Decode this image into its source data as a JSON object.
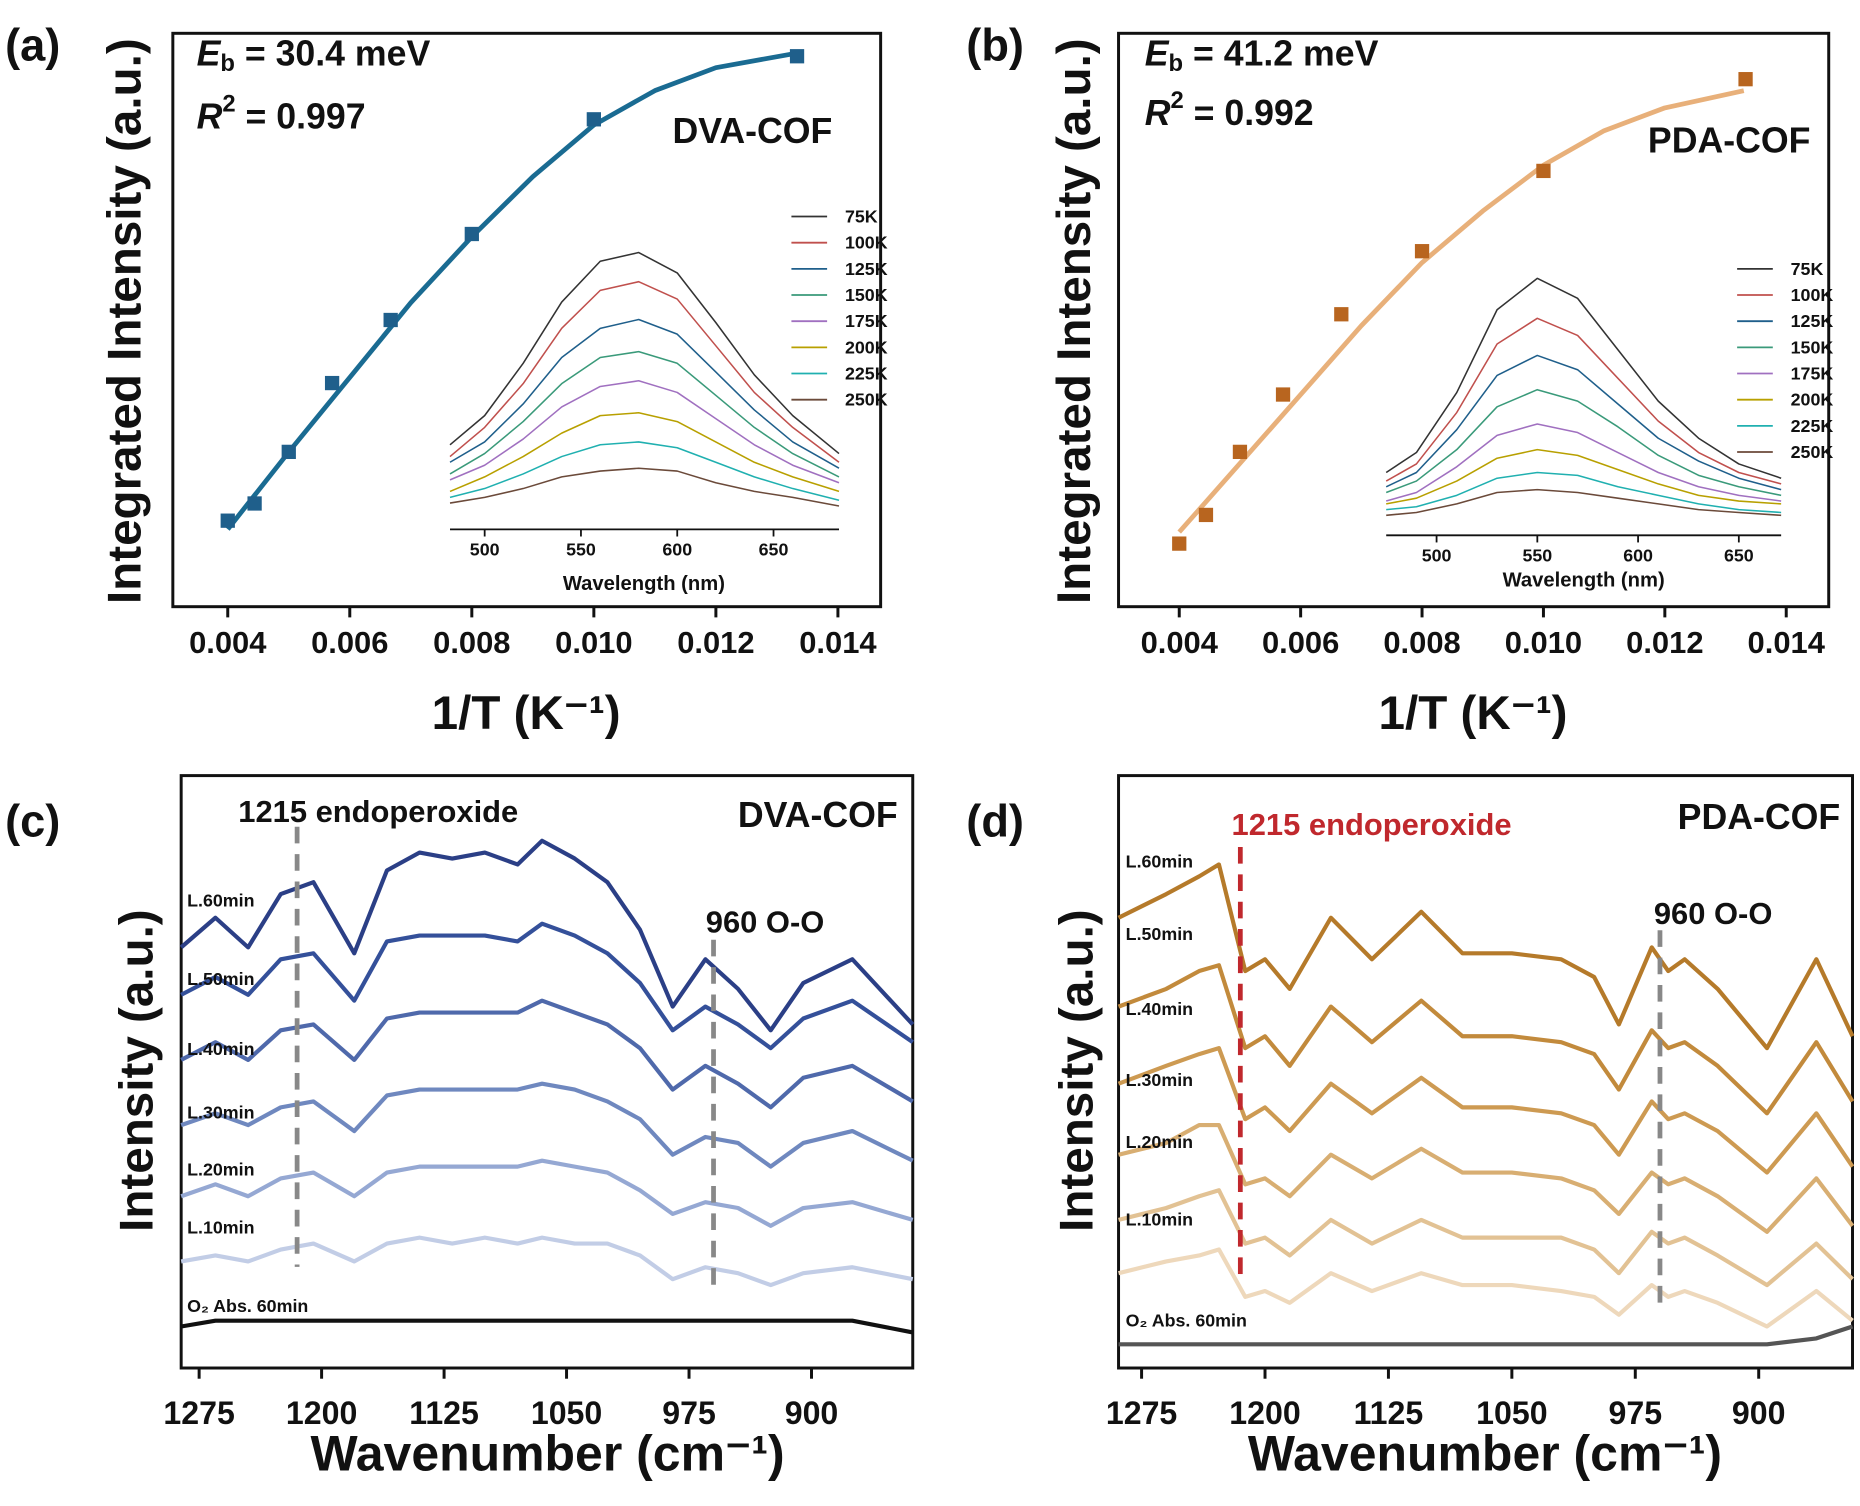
{
  "chart_data": [
    {
      "type": "scatter",
      "panel_label": "(a)",
      "ylabel": "Integrated Intensity (a.u.)",
      "xlabel": "1/T (K⁻¹)",
      "sample_label": "DVA-COF",
      "annotations": [
        {
          "symbol": "E",
          "subscript": "b",
          "text": " = 30.4 meV"
        },
        {
          "symbol": "R",
          "superscript": "2",
          "text": " = 0.997"
        }
      ],
      "x": [
        0.004,
        0.00444,
        0.005,
        0.00571,
        0.00667,
        0.008,
        0.01,
        0.01333
      ],
      "values": [
        0.15,
        0.18,
        0.27,
        0.39,
        0.5,
        0.65,
        0.85,
        0.96
      ],
      "fit_x": [
        0.004,
        0.005,
        0.006,
        0.007,
        0.008,
        0.009,
        0.01,
        0.011,
        0.012,
        0.0133
      ],
      "fit_values": [
        0.135,
        0.27,
        0.4,
        0.53,
        0.645,
        0.75,
        0.84,
        0.9,
        0.94,
        0.965
      ],
      "marker_color": "#1f5f8b",
      "color": "#1a6b92",
      "xlim": [
        0.0031,
        0.0147
      ],
      "ylim": [
        0,
        1
      ],
      "xticks": [
        0.004,
        0.006,
        0.008,
        {
          "value": 0.01,
          "label": "0.010"
        },
        0.012,
        0.014
      ]
    },
    {
      "type": "line",
      "xlabel": "Wavelength (nm)",
      "x": [
        482,
        500,
        520,
        540,
        560,
        580,
        600,
        620,
        640,
        660,
        684
      ],
      "series": [
        {
          "name": "75K",
          "color": "#333333",
          "values": [
            0.29,
            0.39,
            0.57,
            0.78,
            0.92,
            0.95,
            0.88,
            0.71,
            0.53,
            0.39,
            0.26
          ]
        },
        {
          "name": "100K",
          "color": "#c0504d",
          "values": [
            0.25,
            0.35,
            0.5,
            0.69,
            0.82,
            0.85,
            0.79,
            0.63,
            0.47,
            0.35,
            0.23
          ]
        },
        {
          "name": "125K",
          "color": "#1f5f8b",
          "values": [
            0.23,
            0.3,
            0.43,
            0.59,
            0.69,
            0.72,
            0.67,
            0.54,
            0.41,
            0.3,
            0.21
          ]
        },
        {
          "name": "150K",
          "color": "#3a9a7a",
          "values": [
            0.19,
            0.26,
            0.37,
            0.5,
            0.59,
            0.61,
            0.57,
            0.46,
            0.35,
            0.26,
            0.18
          ]
        },
        {
          "name": "175K",
          "color": "#a070c0",
          "values": [
            0.17,
            0.22,
            0.31,
            0.42,
            0.49,
            0.51,
            0.47,
            0.38,
            0.29,
            0.22,
            0.16
          ]
        },
        {
          "name": "200K",
          "color": "#b8a000",
          "values": [
            0.13,
            0.18,
            0.25,
            0.33,
            0.39,
            0.4,
            0.37,
            0.3,
            0.23,
            0.18,
            0.13
          ]
        },
        {
          "name": "225K",
          "color": "#20b0b0",
          "values": [
            0.11,
            0.14,
            0.19,
            0.25,
            0.29,
            0.3,
            0.28,
            0.23,
            0.18,
            0.14,
            0.1
          ]
        },
        {
          "name": "250K",
          "color": "#6b4a3a",
          "values": [
            0.09,
            0.11,
            0.14,
            0.18,
            0.2,
            0.21,
            0.2,
            0.16,
            0.13,
            0.11,
            0.08
          ]
        }
      ],
      "xlim": [
        482,
        684
      ],
      "ylim": [
        0,
        1
      ],
      "xticks": [
        500,
        550,
        600,
        650
      ]
    },
    {
      "type": "scatter",
      "panel_label": "(b)",
      "ylabel": "Integrated Intensity (a.u.)",
      "xlabel": "1/T (K⁻¹)",
      "sample_label": "PDA-COF",
      "annotations": [
        {
          "symbol": "E",
          "subscript": "b",
          "text": " = 41.2 meV"
        },
        {
          "symbol": "R",
          "superscript": "2",
          "text": " = 0.992"
        }
      ],
      "x": [
        0.004,
        0.00444,
        0.005,
        0.00571,
        0.00667,
        0.008,
        0.01,
        0.01333
      ],
      "values": [
        0.11,
        0.16,
        0.27,
        0.37,
        0.51,
        0.62,
        0.76,
        0.92
      ],
      "fit_x": [
        0.004,
        0.005,
        0.006,
        0.007,
        0.008,
        0.009,
        0.01,
        0.011,
        0.012,
        0.0133
      ],
      "fit_values": [
        0.13,
        0.25,
        0.37,
        0.49,
        0.6,
        0.69,
        0.77,
        0.83,
        0.87,
        0.9
      ],
      "marker_color": "#b8651f",
      "color": "#e8b07a",
      "xlim": [
        0.003,
        0.0147
      ],
      "ylim": [
        0,
        1
      ],
      "xticks": [
        0.004,
        0.006,
        0.008,
        {
          "value": 0.01,
          "label": "0.010"
        },
        0.012,
        0.014
      ]
    },
    {
      "type": "line",
      "xlabel": "Wavelength (nm)",
      "x": [
        475,
        490,
        510,
        530,
        550,
        570,
        590,
        610,
        630,
        650,
        671
      ],
      "series": [
        {
          "name": "75K",
          "color": "#333333",
          "values": [
            0.22,
            0.29,
            0.5,
            0.79,
            0.9,
            0.83,
            0.65,
            0.47,
            0.34,
            0.25,
            0.2
          ]
        },
        {
          "name": "100K",
          "color": "#c0504d",
          "values": [
            0.19,
            0.25,
            0.43,
            0.67,
            0.76,
            0.7,
            0.55,
            0.4,
            0.29,
            0.22,
            0.18
          ]
        },
        {
          "name": "125K",
          "color": "#1f5f8b",
          "values": [
            0.17,
            0.22,
            0.37,
            0.56,
            0.63,
            0.58,
            0.46,
            0.34,
            0.26,
            0.2,
            0.16
          ]
        },
        {
          "name": "150K",
          "color": "#3a9a7a",
          "values": [
            0.15,
            0.19,
            0.3,
            0.45,
            0.51,
            0.47,
            0.38,
            0.28,
            0.21,
            0.17,
            0.14
          ]
        },
        {
          "name": "175K",
          "color": "#a070c0",
          "values": [
            0.12,
            0.15,
            0.24,
            0.35,
            0.39,
            0.36,
            0.29,
            0.22,
            0.17,
            0.14,
            0.12
          ]
        },
        {
          "name": "200K",
          "color": "#b8a000",
          "values": [
            0.11,
            0.13,
            0.19,
            0.27,
            0.3,
            0.28,
            0.23,
            0.18,
            0.14,
            0.12,
            0.11
          ]
        },
        {
          "name": "225K",
          "color": "#20b0b0",
          "values": [
            0.09,
            0.1,
            0.14,
            0.2,
            0.22,
            0.21,
            0.17,
            0.14,
            0.11,
            0.09,
            0.08
          ]
        },
        {
          "name": "250K",
          "color": "#6b4a3a",
          "values": [
            0.07,
            0.08,
            0.11,
            0.15,
            0.16,
            0.15,
            0.13,
            0.11,
            0.09,
            0.08,
            0.07
          ]
        }
      ],
      "xlim": [
        475,
        671
      ],
      "ylim": [
        0,
        1
      ],
      "xticks": [
        500,
        550,
        600,
        650
      ]
    },
    {
      "type": "line",
      "panel_label": "(c)",
      "ylabel": "Intensity (a.u.)",
      "xlabel": "Wavenumber (cm⁻¹)",
      "sample_label": "DVA-COF",
      "annotations": [
        {
          "text": "1215 endoperoxide",
          "x": 1215,
          "color": "#888888"
        },
        {
          "text": "960 O-O",
          "x": 960,
          "color": "#888888"
        }
      ],
      "x": [
        1286,
        1265,
        1245,
        1225,
        1205,
        1180,
        1160,
        1140,
        1120,
        1100,
        1080,
        1065,
        1045,
        1025,
        1005,
        985,
        965,
        945,
        925,
        905,
        875,
        838
      ],
      "series": [
        {
          "name": "L.60min",
          "color": "#2b3f86",
          "values": [
            0.71,
            0.76,
            0.71,
            0.8,
            0.82,
            0.7,
            0.84,
            0.87,
            0.86,
            0.87,
            0.85,
            0.89,
            0.86,
            0.82,
            0.74,
            0.61,
            0.69,
            0.64,
            0.57,
            0.65,
            0.69,
            0.58
          ]
        },
        {
          "name": "L.50min",
          "color": "#34509a",
          "values": [
            0.63,
            0.66,
            0.63,
            0.69,
            0.7,
            0.62,
            0.72,
            0.73,
            0.73,
            0.73,
            0.72,
            0.75,
            0.73,
            0.7,
            0.65,
            0.57,
            0.61,
            0.58,
            0.54,
            0.59,
            0.62,
            0.55
          ]
        },
        {
          "name": "L.40min",
          "color": "#4f69ab",
          "values": [
            0.52,
            0.55,
            0.52,
            0.57,
            0.58,
            0.52,
            0.59,
            0.6,
            0.6,
            0.6,
            0.6,
            0.62,
            0.6,
            0.58,
            0.54,
            0.47,
            0.51,
            0.48,
            0.44,
            0.49,
            0.51,
            0.45
          ]
        },
        {
          "name": "L.30min",
          "color": "#6f88bf",
          "values": [
            0.41,
            0.43,
            0.41,
            0.44,
            0.45,
            0.4,
            0.46,
            0.47,
            0.47,
            0.47,
            0.47,
            0.48,
            0.47,
            0.45,
            0.42,
            0.36,
            0.39,
            0.38,
            0.34,
            0.38,
            0.4,
            0.35
          ]
        },
        {
          "name": "L.20min",
          "color": "#95a8d3",
          "values": [
            0.29,
            0.31,
            0.29,
            0.32,
            0.33,
            0.29,
            0.33,
            0.34,
            0.34,
            0.34,
            0.34,
            0.35,
            0.34,
            0.33,
            0.3,
            0.26,
            0.28,
            0.27,
            0.24,
            0.27,
            0.28,
            0.25
          ]
        },
        {
          "name": "L.10min",
          "color": "#c2cde6",
          "values": [
            0.18,
            0.19,
            0.18,
            0.2,
            0.21,
            0.18,
            0.21,
            0.22,
            0.21,
            0.22,
            0.21,
            0.22,
            0.21,
            0.21,
            0.19,
            0.15,
            0.17,
            0.16,
            0.14,
            0.16,
            0.17,
            0.15
          ]
        },
        {
          "name": "O₂ Abs. 60min",
          "color": "#111111",
          "values": [
            0.07,
            0.08,
            0.08,
            0.08,
            0.08,
            0.08,
            0.08,
            0.08,
            0.08,
            0.08,
            0.08,
            0.08,
            0.08,
            0.08,
            0.08,
            0.08,
            0.08,
            0.08,
            0.08,
            0.08,
            0.08,
            0.06
          ]
        }
      ],
      "xlim": [
        1286,
        838
      ],
      "ylim": [
        0,
        1
      ],
      "xticks": [
        1275,
        1200,
        1125,
        1050,
        975,
        900
      ]
    },
    {
      "type": "line",
      "panel_label": "(d)",
      "ylabel": "Intensity (a.u.)",
      "xlabel": "Wavenumber (cm⁻¹)",
      "sample_label": "PDA-COF",
      "annotations": [
        {
          "text": "1215 endoperoxide",
          "x": 1215,
          "color": "#c0282d"
        },
        {
          "text": "960 O-O",
          "x": 960,
          "color": "#888888"
        }
      ],
      "x": [
        1289,
        1260,
        1240,
        1228,
        1212,
        1200,
        1185,
        1160,
        1135,
        1105,
        1080,
        1050,
        1020,
        1000,
        985,
        965,
        955,
        945,
        925,
        895,
        865,
        843
      ],
      "series": [
        {
          "name": "L.60min",
          "color": "#b57a2a",
          "values": [
            0.76,
            0.8,
            0.83,
            0.85,
            0.67,
            0.69,
            0.64,
            0.76,
            0.69,
            0.77,
            0.7,
            0.7,
            0.69,
            0.66,
            0.58,
            0.71,
            0.67,
            0.69,
            0.64,
            0.54,
            0.69,
            0.56
          ]
        },
        {
          "name": "L.50min",
          "color": "#c28a3c",
          "values": [
            0.61,
            0.64,
            0.67,
            0.68,
            0.54,
            0.56,
            0.51,
            0.61,
            0.55,
            0.62,
            0.56,
            0.56,
            0.55,
            0.53,
            0.47,
            0.57,
            0.54,
            0.55,
            0.51,
            0.43,
            0.55,
            0.45
          ]
        },
        {
          "name": "L.40min",
          "color": "#cd9a52",
          "values": [
            0.48,
            0.51,
            0.53,
            0.54,
            0.42,
            0.44,
            0.4,
            0.48,
            0.43,
            0.49,
            0.44,
            0.44,
            0.43,
            0.41,
            0.36,
            0.45,
            0.42,
            0.43,
            0.4,
            0.33,
            0.43,
            0.34
          ]
        },
        {
          "name": "L.30min",
          "color": "#d8ae72",
          "values": [
            0.36,
            0.38,
            0.41,
            0.41,
            0.31,
            0.32,
            0.29,
            0.36,
            0.32,
            0.37,
            0.33,
            0.33,
            0.32,
            0.3,
            0.26,
            0.33,
            0.31,
            0.32,
            0.29,
            0.23,
            0.32,
            0.24
          ]
        },
        {
          "name": "L.20min",
          "color": "#e2c294",
          "values": [
            0.25,
            0.27,
            0.29,
            0.3,
            0.21,
            0.22,
            0.19,
            0.25,
            0.21,
            0.25,
            0.22,
            0.22,
            0.22,
            0.2,
            0.16,
            0.23,
            0.21,
            0.22,
            0.19,
            0.14,
            0.21,
            0.15
          ]
        },
        {
          "name": "L.10min",
          "color": "#eed8bb",
          "values": [
            0.16,
            0.18,
            0.19,
            0.2,
            0.12,
            0.13,
            0.11,
            0.16,
            0.13,
            0.16,
            0.14,
            0.14,
            0.13,
            0.12,
            0.09,
            0.14,
            0.12,
            0.13,
            0.11,
            0.07,
            0.13,
            0.08
          ]
        },
        {
          "name": "O₂ Abs. 60min",
          "color": "#555555",
          "values": [
            0.04,
            0.04,
            0.04,
            0.04,
            0.04,
            0.04,
            0.04,
            0.04,
            0.04,
            0.04,
            0.04,
            0.04,
            0.04,
            0.04,
            0.04,
            0.04,
            0.04,
            0.04,
            0.04,
            0.04,
            0.05,
            0.07
          ]
        }
      ],
      "xlim": [
        1289,
        843
      ],
      "ylim": [
        0,
        1
      ],
      "xticks": [
        1275,
        1200,
        1125,
        1050,
        975,
        900
      ]
    }
  ]
}
